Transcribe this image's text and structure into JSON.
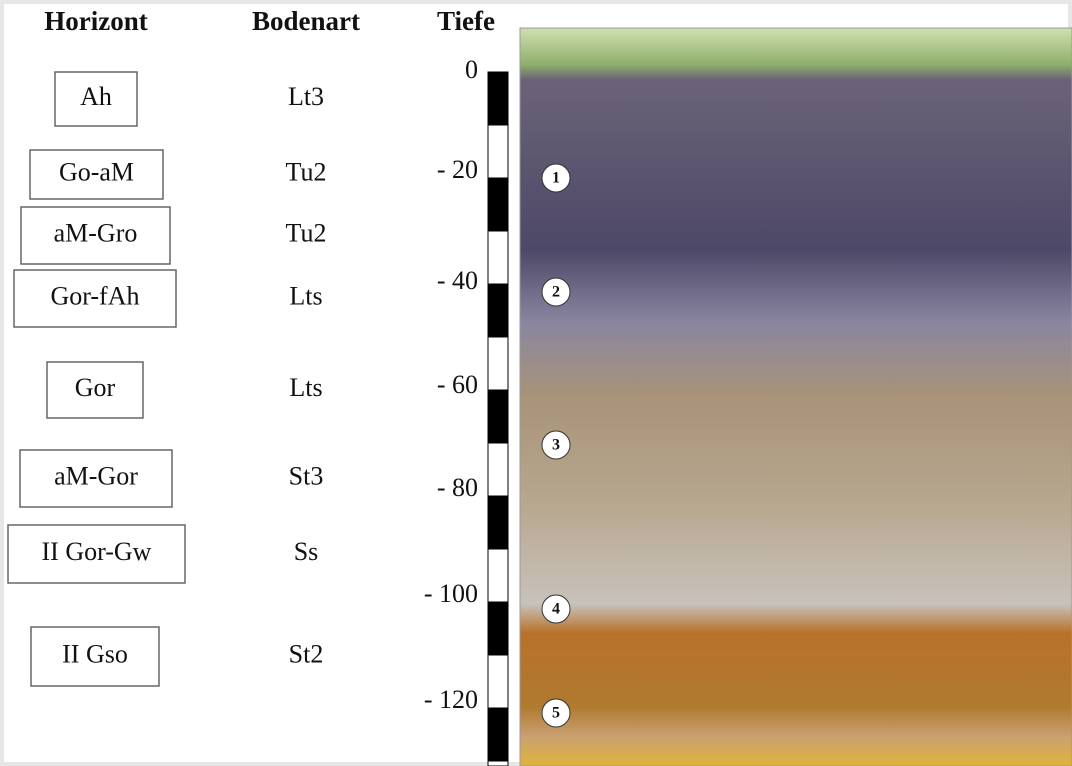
{
  "header": {
    "horizon": "Horizont",
    "soil": "Bodenart",
    "depth": "Tiefe"
  },
  "rows": [
    {
      "horizon": "Ah",
      "soil": "Lt3"
    },
    {
      "horizon": "Go-aM",
      "soil": "Tu2"
    },
    {
      "horizon": "aM-Gro",
      "soil": "Tu2"
    },
    {
      "horizon": "Gor-fAh",
      "soil": "Lts"
    },
    {
      "horizon": "Gor",
      "soil": "Lts"
    },
    {
      "horizon": "aM-Gor",
      "soil": "St3"
    },
    {
      "horizon": "II Gor-Gw",
      "soil": "Ss"
    },
    {
      "horizon": "II Gso",
      "soil": "St2"
    }
  ],
  "depth_labels": [
    "0",
    "- 20",
    "- 40",
    "- 60",
    "- 80",
    "- 100",
    "- 120"
  ],
  "markers": [
    "1",
    "2",
    "3",
    "4",
    "5"
  ]
}
